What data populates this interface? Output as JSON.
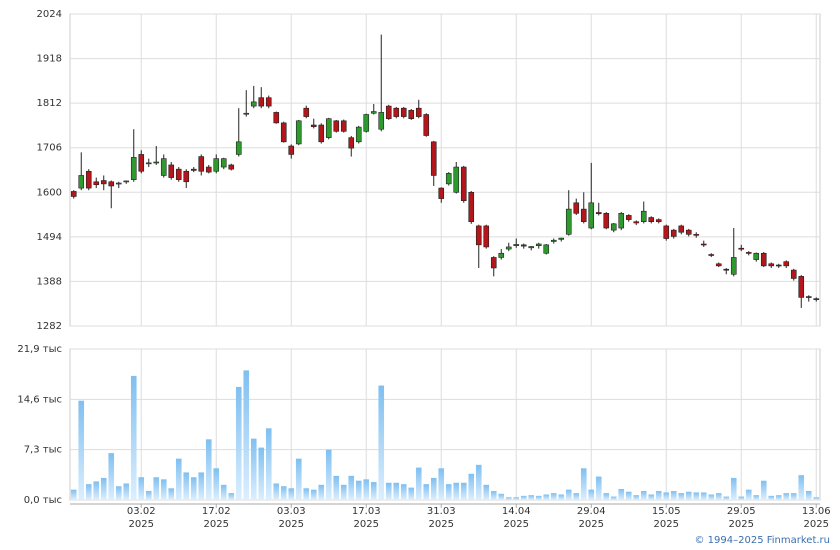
{
  "chart_data": [
    {
      "type": "candlestick",
      "up_color": "#2e9a2e",
      "down_color": "#b3161b",
      "open": [
        1602,
        1610,
        1650,
        1625,
        1628,
        1625,
        1620,
        1625,
        1630,
        1690,
        1668,
        1670,
        1640,
        1665,
        1655,
        1650,
        1655,
        1685,
        1660,
        1650,
        1660,
        1665,
        1690,
        1786,
        1805,
        1825,
        1825,
        1790,
        1765,
        1710,
        1715,
        1800,
        1760,
        1760,
        1730,
        1770,
        1770,
        1730,
        1720,
        1745,
        1788,
        1750,
        1805,
        1800,
        1800,
        1795,
        1800,
        1785,
        1720,
        1610,
        1620,
        1600,
        1660,
        1600,
        1520,
        1520,
        1445,
        1445,
        1465,
        1473,
        1475,
        1468,
        1473,
        1455,
        1483,
        1488,
        1500,
        1575,
        1560,
        1515,
        1552,
        1550,
        1510,
        1515,
        1545,
        1530,
        1530,
        1540,
        1535,
        1520,
        1510,
        1520,
        1510,
        1500,
        1477,
        1452,
        1430,
        1417,
        1405,
        1467,
        1457,
        1440,
        1455,
        1430,
        1427,
        1435,
        1415,
        1400,
        1352,
        1347
      ],
      "high": [
        1605,
        1695,
        1655,
        1635,
        1640,
        1628,
        1625,
        1628,
        1750,
        1700,
        1680,
        1710,
        1690,
        1672,
        1660,
        1655,
        1660,
        1690,
        1665,
        1690,
        1682,
        1668,
        1800,
        1843,
        1853,
        1850,
        1830,
        1792,
        1768,
        1714,
        1772,
        1806,
        1775,
        1764,
        1777,
        1772,
        1773,
        1734,
        1758,
        1787,
        1810,
        1975,
        1808,
        1803,
        1803,
        1798,
        1820,
        1788,
        1722,
        1612,
        1648,
        1672,
        1663,
        1603,
        1523,
        1523,
        1448,
        1465,
        1480,
        1490,
        1478,
        1472,
        1480,
        1477,
        1490,
        1492,
        1605,
        1585,
        1600,
        1670,
        1575,
        1553,
        1527,
        1553,
        1548,
        1533,
        1578,
        1543,
        1538,
        1523,
        1513,
        1523,
        1513,
        1505,
        1485,
        1455,
        1433,
        1420,
        1515,
        1475,
        1460,
        1457,
        1458,
        1433,
        1430,
        1438,
        1418,
        1403,
        1355,
        1350
      ],
      "low": [
        1585,
        1605,
        1605,
        1610,
        1605,
        1562,
        1610,
        1620,
        1625,
        1645,
        1660,
        1665,
        1635,
        1630,
        1625,
        1610,
        1648,
        1640,
        1645,
        1645,
        1655,
        1652,
        1685,
        1780,
        1800,
        1800,
        1800,
        1763,
        1718,
        1680,
        1712,
        1776,
        1752,
        1716,
        1726,
        1742,
        1742,
        1685,
        1716,
        1742,
        1785,
        1745,
        1772,
        1776,
        1776,
        1772,
        1776,
        1732,
        1615,
        1575,
        1616,
        1597,
        1575,
        1525,
        1420,
        1466,
        1400,
        1440,
        1460,
        1468,
        1466,
        1462,
        1466,
        1452,
        1478,
        1483,
        1497,
        1546,
        1526,
        1512,
        1545,
        1512,
        1505,
        1510,
        1530,
        1522,
        1526,
        1526,
        1526,
        1485,
        1490,
        1500,
        1495,
        1492,
        1470,
        1446,
        1422,
        1405,
        1400,
        1460,
        1450,
        1435,
        1422,
        1420,
        1420,
        1420,
        1390,
        1325,
        1340,
        1340
      ],
      "close": [
        1590,
        1640,
        1610,
        1618,
        1620,
        1615,
        1622,
        1627,
        1683,
        1650,
        1670,
        1672,
        1680,
        1635,
        1630,
        1625,
        1652,
        1650,
        1648,
        1680,
        1680,
        1655,
        1720,
        1788,
        1815,
        1805,
        1805,
        1765,
        1720,
        1690,
        1770,
        1780,
        1756,
        1720,
        1775,
        1745,
        1745,
        1705,
        1755,
        1785,
        1792,
        1790,
        1775,
        1780,
        1780,
        1775,
        1780,
        1735,
        1640,
        1585,
        1645,
        1660,
        1580,
        1530,
        1475,
        1470,
        1420,
        1455,
        1470,
        1476,
        1472,
        1471,
        1477,
        1475,
        1486,
        1491,
        1560,
        1550,
        1530,
        1575,
        1549,
        1515,
        1525,
        1550,
        1535,
        1527,
        1555,
        1530,
        1530,
        1490,
        1495,
        1505,
        1500,
        1498,
        1475,
        1450,
        1425,
        1415,
        1445,
        1465,
        1455,
        1455,
        1425,
        1425,
        1425,
        1425,
        1395,
        1350,
        1350,
        1345
      ],
      "ylim": [
        1282,
        2024
      ],
      "yticks": [
        1282,
        1388,
        1494,
        1600,
        1706,
        1812,
        1918,
        2024
      ],
      "grid": true
    },
    {
      "type": "bar",
      "color": "#8cc6ee",
      "values": [
        1.5,
        14.4,
        2.3,
        2.7,
        3.2,
        6.8,
        2.0,
        2.4,
        18.0,
        3.3,
        1.3,
        3.3,
        3.0,
        1.7,
        6.0,
        4.0,
        3.3,
        4.0,
        8.8,
        4.6,
        2.2,
        1.0,
        16.4,
        18.8,
        8.9,
        7.6,
        10.4,
        2.4,
        2.0,
        1.7,
        6.0,
        1.7,
        1.5,
        2.2,
        7.3,
        3.5,
        2.2,
        3.5,
        2.8,
        3.0,
        2.6,
        16.6,
        2.5,
        2.5,
        2.3,
        1.8,
        4.7,
        2.3,
        3.2,
        4.6,
        2.3,
        2.5,
        2.5,
        3.8,
        5.1,
        2.2,
        1.3,
        0.9,
        0.4,
        0.4,
        0.6,
        0.7,
        0.6,
        0.8,
        1.0,
        0.8,
        1.5,
        1.0,
        4.6,
        1.5,
        3.4,
        1.0,
        0.5,
        1.6,
        1.2,
        0.7,
        1.3,
        0.8,
        1.3,
        1.1,
        1.3,
        1.0,
        1.2,
        1.1,
        1.1,
        0.8,
        1.0,
        0.5,
        3.2,
        0.5,
        1.5,
        0.7,
        2.8,
        0.6,
        0.7,
        1.0,
        1.0,
        3.6,
        1.3,
        0.4
      ],
      "categories": [
        null,
        null,
        null,
        null,
        null,
        null,
        null,
        null,
        null,
        "03.02\n2025",
        null,
        null,
        null,
        null,
        null,
        null,
        null,
        null,
        null,
        "17.02\n2025",
        null,
        null,
        null,
        null,
        null,
        null,
        null,
        null,
        null,
        "03.03\n2025",
        null,
        null,
        null,
        null,
        null,
        null,
        null,
        null,
        null,
        "17.03\n2025",
        null,
        null,
        null,
        null,
        null,
        null,
        null,
        null,
        null,
        "31.03\n2025",
        null,
        null,
        null,
        null,
        null,
        null,
        null,
        null,
        null,
        "14.04\n2025",
        null,
        null,
        null,
        null,
        null,
        null,
        null,
        null,
        null,
        "29.04\n2025",
        null,
        null,
        null,
        null,
        null,
        null,
        null,
        null,
        null,
        "15.05\n2025",
        null,
        null,
        null,
        null,
        null,
        null,
        null,
        null,
        null,
        "29.05\n2025",
        null,
        null,
        null,
        null,
        null,
        null,
        null,
        null,
        null,
        "13.06\n2025"
      ],
      "ylim": [
        0,
        21.9
      ],
      "yticks": [
        {
          "value": 0,
          "label": "0,0 тыс"
        },
        {
          "value": 7.3,
          "label": "7,3 тыс"
        },
        {
          "value": 14.6,
          "label": "14,6 тыс"
        },
        {
          "value": 21.9,
          "label": "21,9 тыс"
        }
      ],
      "grid": true
    }
  ],
  "credit": "© 1994–2025 Finmarket.ru"
}
